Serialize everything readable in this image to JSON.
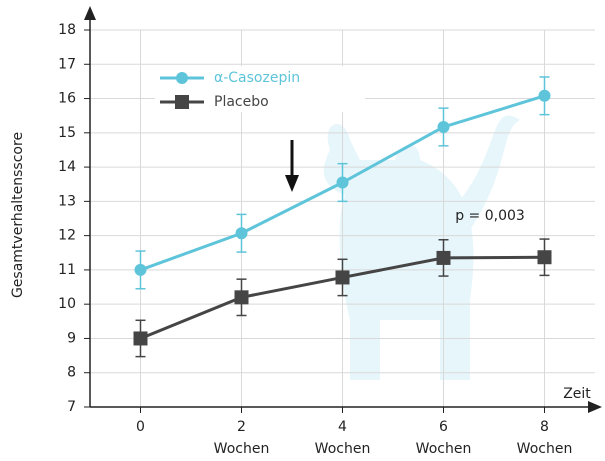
{
  "chart_data": {
    "type": "line",
    "y_label": "Gesamtverhaltensscore",
    "x_label": "Zeit",
    "x": [
      0,
      2,
      4,
      6,
      8
    ],
    "xlim": [
      -1,
      9
    ],
    "xticks": [
      0,
      2,
      4,
      6,
      8
    ],
    "xtick_sublabels": [
      null,
      "Wochen",
      "Wochen",
      "Wochen",
      "Wochen"
    ],
    "ylim": [
      7,
      18
    ],
    "yticks": [
      7,
      8,
      9,
      10,
      11,
      12,
      13,
      14,
      15,
      16,
      17,
      18
    ],
    "grid": true,
    "series": [
      {
        "name": "α-Casozepin",
        "color": "#5ec4da",
        "marker": "circle",
        "values": [
          11.0,
          12.07,
          13.55,
          15.17,
          16.08
        ],
        "errors": [
          0.55,
          0.55,
          0.55,
          0.55,
          0.55
        ]
      },
      {
        "name": "Placebo",
        "color": "#454545",
        "marker": "square",
        "values": [
          9.0,
          10.2,
          10.78,
          11.35,
          11.37
        ],
        "errors": [
          0.53,
          0.53,
          0.53,
          0.53,
          0.53
        ]
      }
    ],
    "annotation": "p = 0,003"
  }
}
